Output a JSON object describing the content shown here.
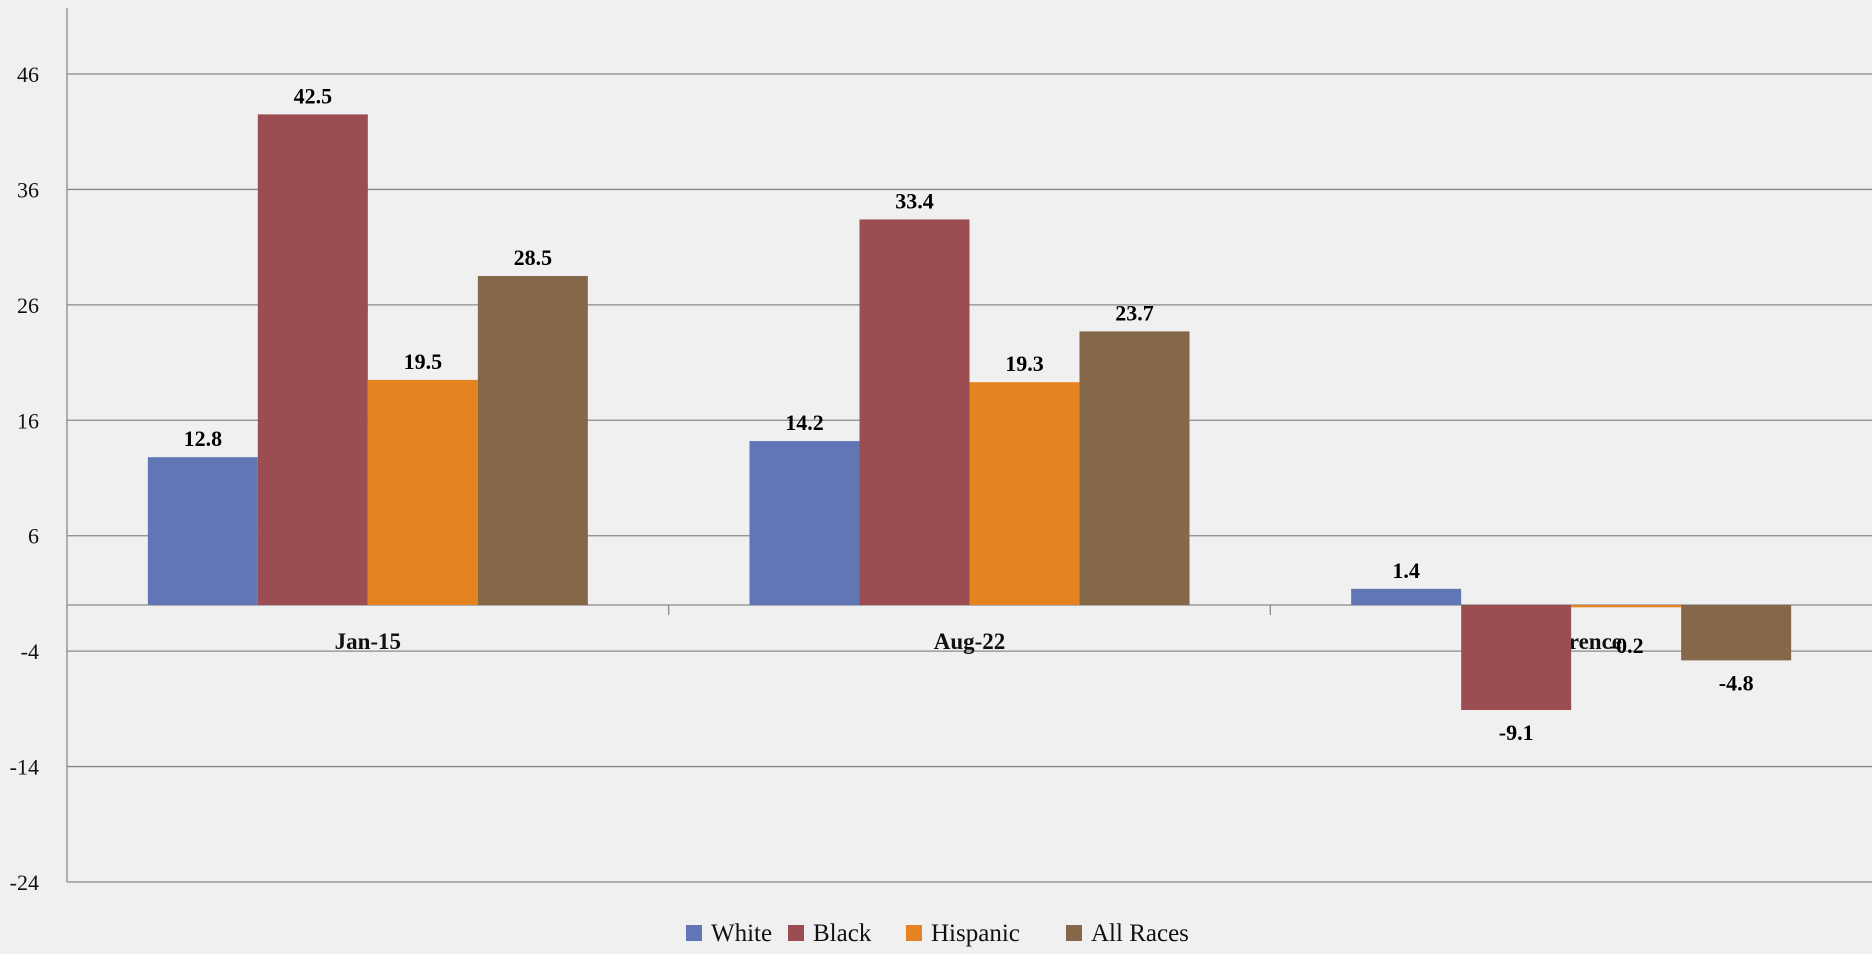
{
  "chart_data": {
    "type": "bar",
    "categories": [
      "Jan-15",
      "Aug-22",
      "Difference"
    ],
    "series": [
      {
        "name": "White",
        "color": "#6176b5",
        "values": [
          12.8,
          14.2,
          1.4
        ],
        "labels": [
          "12.8",
          "14.2",
          "1.4"
        ]
      },
      {
        "name": "Black",
        "color": "#9b4d52",
        "values": [
          42.5,
          33.4,
          -9.1
        ],
        "labels": [
          "42.5",
          "33.4",
          "-9.1"
        ]
      },
      {
        "name": "Hispanic",
        "color": "#e58321",
        "values": [
          19.5,
          19.3,
          -0.2
        ],
        "labels": [
          "19.5",
          "19.3",
          "-0.2"
        ]
      },
      {
        "name": "All Races",
        "color": "#856749",
        "values": [
          28.5,
          23.7,
          -4.8
        ],
        "labels": [
          "28.5",
          "23.7",
          "-4.8"
        ]
      }
    ],
    "y_ticks": [
      -24,
      -14,
      -4,
      6,
      16,
      26,
      36,
      46
    ],
    "ylim": [
      -24,
      46
    ],
    "grid": true,
    "legend_position": "bottom-center",
    "title": "",
    "xlabel": "",
    "ylabel": ""
  }
}
